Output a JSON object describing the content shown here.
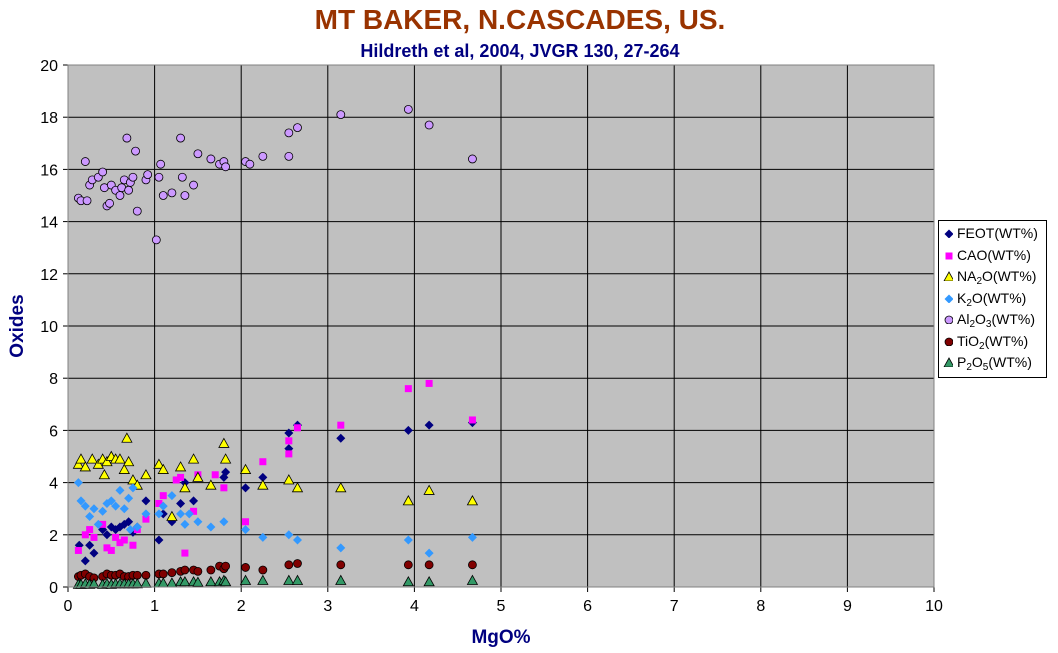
{
  "chart_data": {
    "type": "scatter",
    "title": "MT BAKER, N.CASCADES, US.",
    "subtitle": "Hildreth et al, 2004, JVGR 130, 27-264",
    "xlabel": "MgO%",
    "ylabel": "Oxides",
    "xlim": [
      0,
      10
    ],
    "ylim": [
      0,
      20
    ],
    "xticks": [
      0,
      1,
      2,
      3,
      4,
      5,
      6,
      7,
      8,
      9,
      10
    ],
    "yticks": [
      0,
      2,
      4,
      6,
      8,
      10,
      12,
      14,
      16,
      18,
      20
    ],
    "grid": true,
    "plot_background": "#C0C0C0",
    "legend_position": "right",
    "series": [
      {
        "name": "FEOT(WT%)",
        "label_html": "FEOT(WT%)",
        "marker": "diamond",
        "color": "#000080",
        "points": [
          [
            0.13,
            1.6
          ],
          [
            0.2,
            1.0
          ],
          [
            0.25,
            1.6
          ],
          [
            0.3,
            1.3
          ],
          [
            0.4,
            2.2
          ],
          [
            0.45,
            2.0
          ],
          [
            0.5,
            2.3
          ],
          [
            0.55,
            2.2
          ],
          [
            0.6,
            2.3
          ],
          [
            0.65,
            2.4
          ],
          [
            0.7,
            2.5
          ],
          [
            0.75,
            2.1
          ],
          [
            0.8,
            2.3
          ],
          [
            0.9,
            3.3
          ],
          [
            1.05,
            1.8
          ],
          [
            1.1,
            2.8
          ],
          [
            1.2,
            2.5
          ],
          [
            1.3,
            3.2
          ],
          [
            1.35,
            4.0
          ],
          [
            1.45,
            3.3
          ],
          [
            1.8,
            4.2
          ],
          [
            1.82,
            4.4
          ],
          [
            2.05,
            3.8
          ],
          [
            2.25,
            4.2
          ],
          [
            2.55,
            5.3
          ],
          [
            2.55,
            5.9
          ],
          [
            2.65,
            6.2
          ],
          [
            3.15,
            5.7
          ],
          [
            3.93,
            6.0
          ],
          [
            4.17,
            6.2
          ],
          [
            4.67,
            6.3
          ]
        ]
      },
      {
        "name": "CAO(WT%)",
        "label_html": "CAO(WT%)",
        "marker": "square",
        "color": "#FF00FF",
        "points": [
          [
            0.12,
            1.4
          ],
          [
            0.2,
            2.0
          ],
          [
            0.25,
            2.2
          ],
          [
            0.3,
            1.9
          ],
          [
            0.4,
            2.4
          ],
          [
            0.45,
            1.5
          ],
          [
            0.5,
            1.4
          ],
          [
            0.55,
            1.9
          ],
          [
            0.6,
            1.7
          ],
          [
            0.65,
            1.8
          ],
          [
            0.75,
            1.6
          ],
          [
            0.8,
            2.2
          ],
          [
            0.9,
            2.6
          ],
          [
            1.05,
            3.2
          ],
          [
            1.1,
            3.5
          ],
          [
            1.25,
            4.1
          ],
          [
            1.3,
            4.2
          ],
          [
            1.35,
            1.3
          ],
          [
            1.45,
            2.9
          ],
          [
            1.5,
            4.3
          ],
          [
            1.7,
            4.3
          ],
          [
            1.8,
            3.8
          ],
          [
            2.05,
            2.5
          ],
          [
            2.25,
            4.8
          ],
          [
            2.55,
            5.1
          ],
          [
            2.55,
            5.6
          ],
          [
            2.65,
            6.1
          ],
          [
            3.15,
            6.2
          ],
          [
            3.93,
            7.6
          ],
          [
            4.17,
            7.8
          ],
          [
            4.67,
            6.4
          ]
        ]
      },
      {
        "name": "NA2O(WT%)",
        "label_html": "NA<sub>2</sub>O(WT%)",
        "marker": "triangle",
        "color": "#FFFF00",
        "points": [
          [
            0.12,
            4.7
          ],
          [
            0.15,
            4.9
          ],
          [
            0.2,
            4.6
          ],
          [
            0.28,
            4.9
          ],
          [
            0.35,
            4.7
          ],
          [
            0.4,
            4.9
          ],
          [
            0.42,
            4.3
          ],
          [
            0.45,
            4.8
          ],
          [
            0.5,
            5.0
          ],
          [
            0.55,
            4.9
          ],
          [
            0.6,
            4.9
          ],
          [
            0.65,
            4.5
          ],
          [
            0.68,
            5.7
          ],
          [
            0.7,
            4.8
          ],
          [
            0.75,
            4.1
          ],
          [
            0.8,
            3.9
          ],
          [
            0.9,
            4.3
          ],
          [
            1.05,
            4.7
          ],
          [
            1.1,
            4.5
          ],
          [
            1.2,
            2.7
          ],
          [
            1.3,
            4.6
          ],
          [
            1.35,
            3.8
          ],
          [
            1.45,
            4.9
          ],
          [
            1.5,
            4.2
          ],
          [
            1.65,
            3.9
          ],
          [
            1.8,
            5.5
          ],
          [
            1.82,
            4.9
          ],
          [
            2.05,
            4.5
          ],
          [
            2.25,
            3.9
          ],
          [
            2.55,
            4.1
          ],
          [
            2.65,
            3.8
          ],
          [
            3.15,
            3.8
          ],
          [
            3.93,
            3.3
          ],
          [
            4.17,
            3.7
          ],
          [
            4.67,
            3.3
          ]
        ]
      },
      {
        "name": "K2O(WT%)",
        "label_html": "K<sub>2</sub>O(WT%)",
        "marker": "diamond",
        "color": "#3399FF",
        "points": [
          [
            0.12,
            4.0
          ],
          [
            0.15,
            3.3
          ],
          [
            0.2,
            3.1
          ],
          [
            0.25,
            2.7
          ],
          [
            0.3,
            3.0
          ],
          [
            0.35,
            2.4
          ],
          [
            0.4,
            2.9
          ],
          [
            0.45,
            3.2
          ],
          [
            0.5,
            3.3
          ],
          [
            0.55,
            3.1
          ],
          [
            0.6,
            3.7
          ],
          [
            0.65,
            3.0
          ],
          [
            0.7,
            3.4
          ],
          [
            0.72,
            2.2
          ],
          [
            0.75,
            3.8
          ],
          [
            0.8,
            2.3
          ],
          [
            0.9,
            2.8
          ],
          [
            1.05,
            2.8
          ],
          [
            1.1,
            3.1
          ],
          [
            1.2,
            3.5
          ],
          [
            1.3,
            2.8
          ],
          [
            1.35,
            2.4
          ],
          [
            1.4,
            2.8
          ],
          [
            1.5,
            2.5
          ],
          [
            1.65,
            2.3
          ],
          [
            1.8,
            2.5
          ],
          [
            2.05,
            2.2
          ],
          [
            2.25,
            1.9
          ],
          [
            2.55,
            2.0
          ],
          [
            2.65,
            1.8
          ],
          [
            3.15,
            1.5
          ],
          [
            3.93,
            1.8
          ],
          [
            4.17,
            1.3
          ],
          [
            4.67,
            1.9
          ]
        ]
      },
      {
        "name": "AL2O3(WT%)",
        "label_html": "Al<sub>2</sub>O<sub>3</sub>(WT%)",
        "marker": "circle",
        "color": "#CC99FF",
        "points": [
          [
            0.12,
            14.9
          ],
          [
            0.15,
            14.8
          ],
          [
            0.2,
            16.3
          ],
          [
            0.22,
            14.8
          ],
          [
            0.25,
            15.4
          ],
          [
            0.28,
            15.6
          ],
          [
            0.35,
            15.7
          ],
          [
            0.4,
            15.9
          ],
          [
            0.42,
            15.3
          ],
          [
            0.45,
            14.6
          ],
          [
            0.48,
            14.7
          ],
          [
            0.5,
            15.4
          ],
          [
            0.55,
            15.2
          ],
          [
            0.6,
            15.0
          ],
          [
            0.62,
            15.3
          ],
          [
            0.65,
            15.6
          ],
          [
            0.68,
            17.2
          ],
          [
            0.7,
            15.2
          ],
          [
            0.72,
            15.5
          ],
          [
            0.75,
            15.7
          ],
          [
            0.78,
            16.7
          ],
          [
            0.8,
            14.4
          ],
          [
            0.9,
            15.6
          ],
          [
            0.92,
            15.8
          ],
          [
            1.02,
            13.3
          ],
          [
            1.05,
            15.7
          ],
          [
            1.07,
            16.2
          ],
          [
            1.1,
            15.0
          ],
          [
            1.2,
            15.1
          ],
          [
            1.3,
            17.2
          ],
          [
            1.32,
            15.7
          ],
          [
            1.35,
            15.0
          ],
          [
            1.45,
            15.4
          ],
          [
            1.5,
            16.6
          ],
          [
            1.65,
            16.4
          ],
          [
            1.75,
            16.2
          ],
          [
            1.8,
            16.3
          ],
          [
            1.82,
            16.1
          ],
          [
            2.05,
            16.3
          ],
          [
            2.1,
            16.2
          ],
          [
            2.25,
            16.5
          ],
          [
            2.55,
            17.4
          ],
          [
            2.55,
            16.5
          ],
          [
            2.65,
            17.6
          ],
          [
            3.15,
            18.1
          ],
          [
            3.93,
            18.3
          ],
          [
            4.17,
            17.7
          ],
          [
            4.67,
            16.4
          ]
        ]
      },
      {
        "name": "TIO2(WT%)",
        "label_html": "TiO<sub>2</sub>(WT%)",
        "marker": "circle",
        "color": "#800000",
        "points": [
          [
            0.12,
            0.4
          ],
          [
            0.15,
            0.45
          ],
          [
            0.2,
            0.5
          ],
          [
            0.25,
            0.4
          ],
          [
            0.3,
            0.35
          ],
          [
            0.4,
            0.4
          ],
          [
            0.45,
            0.5
          ],
          [
            0.5,
            0.45
          ],
          [
            0.55,
            0.45
          ],
          [
            0.6,
            0.5
          ],
          [
            0.65,
            0.4
          ],
          [
            0.7,
            0.4
          ],
          [
            0.75,
            0.45
          ],
          [
            0.8,
            0.45
          ],
          [
            0.9,
            0.45
          ],
          [
            1.05,
            0.5
          ],
          [
            1.1,
            0.5
          ],
          [
            1.2,
            0.55
          ],
          [
            1.3,
            0.6
          ],
          [
            1.35,
            0.65
          ],
          [
            1.45,
            0.65
          ],
          [
            1.5,
            0.6
          ],
          [
            1.65,
            0.65
          ],
          [
            1.75,
            0.8
          ],
          [
            1.8,
            0.7
          ],
          [
            1.82,
            0.8
          ],
          [
            2.05,
            0.75
          ],
          [
            2.25,
            0.65
          ],
          [
            2.55,
            0.85
          ],
          [
            2.65,
            0.9
          ],
          [
            3.15,
            0.85
          ],
          [
            3.93,
            0.85
          ],
          [
            4.17,
            0.85
          ],
          [
            4.67,
            0.85
          ]
        ]
      },
      {
        "name": "P2O5(WT%)",
        "label_html": "P<sub>2</sub>O<sub>5</sub>(WT%)",
        "marker": "triangle",
        "color": "#339966",
        "points": [
          [
            0.12,
            0.1
          ],
          [
            0.15,
            0.1
          ],
          [
            0.2,
            0.12
          ],
          [
            0.25,
            0.1
          ],
          [
            0.3,
            0.12
          ],
          [
            0.4,
            0.1
          ],
          [
            0.45,
            0.12
          ],
          [
            0.5,
            0.1
          ],
          [
            0.55,
            0.12
          ],
          [
            0.6,
            0.12
          ],
          [
            0.65,
            0.12
          ],
          [
            0.7,
            0.12
          ],
          [
            0.75,
            0.12
          ],
          [
            0.8,
            0.12
          ],
          [
            0.9,
            0.14
          ],
          [
            1.05,
            0.15
          ],
          [
            1.1,
            0.15
          ],
          [
            1.2,
            0.15
          ],
          [
            1.3,
            0.2
          ],
          [
            1.35,
            0.2
          ],
          [
            1.45,
            0.2
          ],
          [
            1.5,
            0.18
          ],
          [
            1.65,
            0.2
          ],
          [
            1.75,
            0.2
          ],
          [
            1.8,
            0.25
          ],
          [
            1.82,
            0.2
          ],
          [
            2.05,
            0.25
          ],
          [
            2.25,
            0.25
          ],
          [
            2.55,
            0.25
          ],
          [
            2.65,
            0.25
          ],
          [
            3.15,
            0.25
          ],
          [
            3.93,
            0.2
          ],
          [
            4.17,
            0.2
          ],
          [
            4.67,
            0.25
          ]
        ]
      }
    ]
  }
}
